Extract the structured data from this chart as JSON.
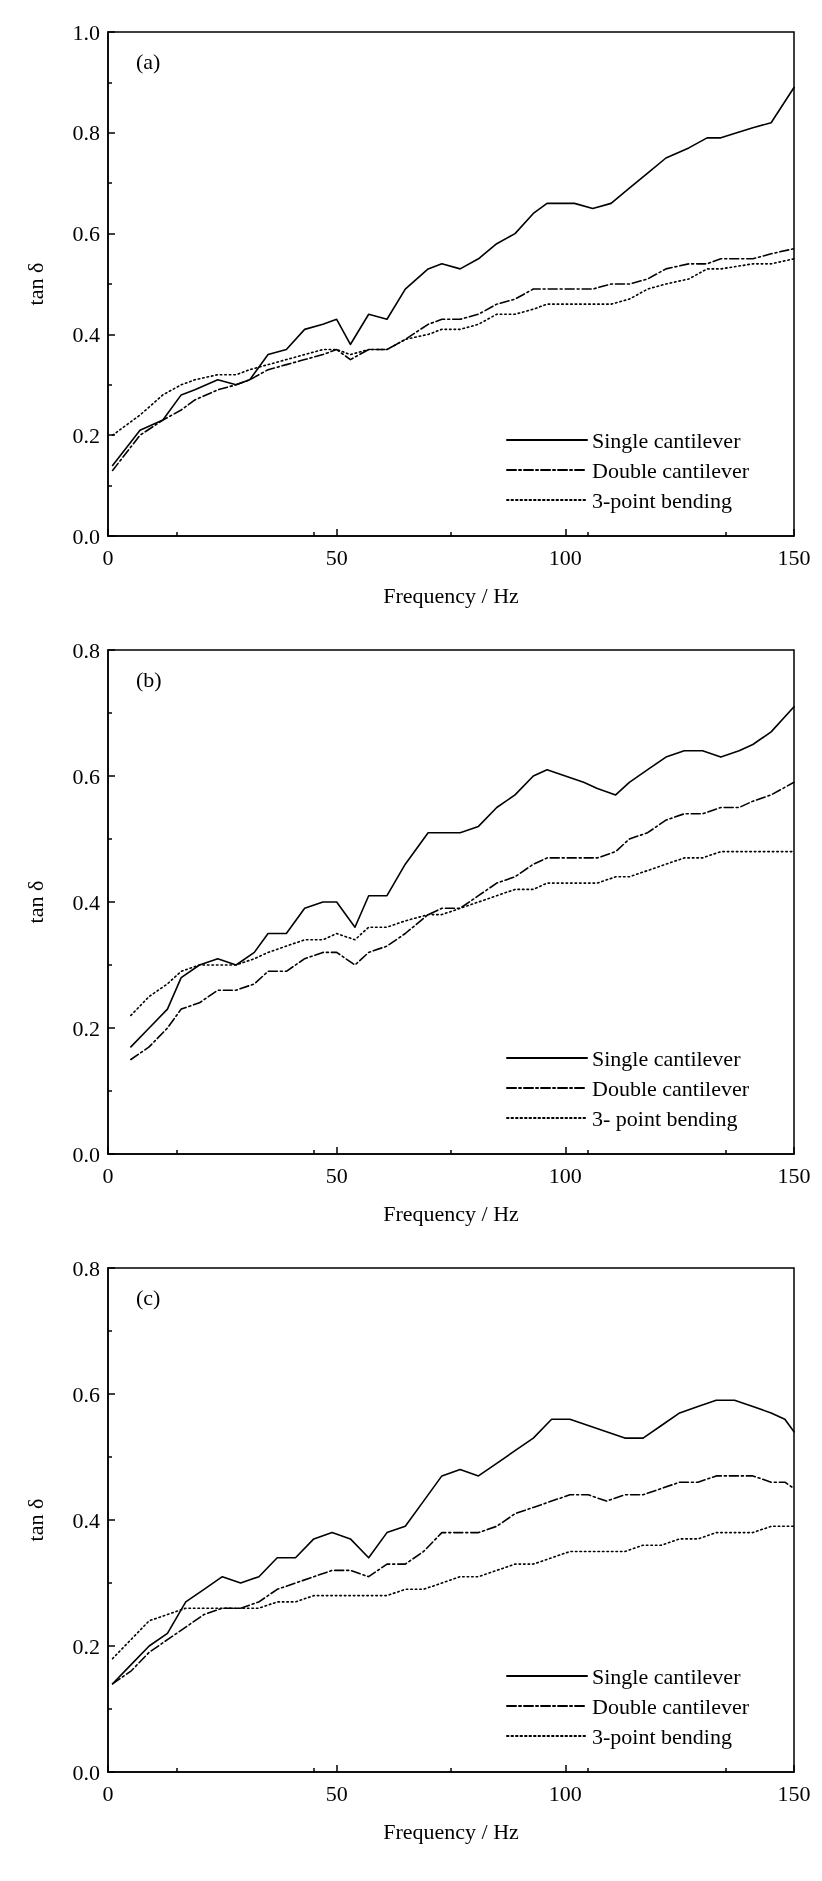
{
  "chart_data": [
    {
      "type": "line",
      "xlabel": "Frequency / Hz",
      "ylabel": "tan δ",
      "annotations": [
        "(a)"
      ],
      "xlim": [
        0,
        150
      ],
      "xticks": [
        0,
        50,
        100,
        150
      ],
      "ylim": [
        0,
        1.0
      ],
      "yticks": [
        {
          "value": 0,
          "label": "0.0"
        },
        {
          "value": 0.2,
          "label": "0.2"
        },
        {
          "value": 0.4,
          "label": "0.4"
        },
        {
          "value": 0.6,
          "label": "0.6"
        },
        {
          "value": 0.8,
          "label": "0.8"
        },
        {
          "value": 1.0,
          "label": "1.0"
        }
      ],
      "grid": false,
      "legend": "bottom right",
      "marker": "none",
      "x": [
        1,
        7,
        12,
        16,
        19,
        24,
        28,
        31,
        35,
        39,
        43,
        47,
        50,
        53,
        57,
        61,
        65,
        70,
        73,
        77,
        81,
        85,
        89,
        93,
        96,
        102,
        106,
        110,
        114,
        118,
        122,
        127,
        131,
        134,
        141,
        145,
        150
      ],
      "series": [
        {
          "name": "Single cantilever",
          "color": "#000000",
          "line_style": "solid",
          "values": [
            0.14,
            0.21,
            0.23,
            0.28,
            0.29,
            0.31,
            0.3,
            0.31,
            0.36,
            0.37,
            0.41,
            0.42,
            0.43,
            0.38,
            0.44,
            0.43,
            0.49,
            0.53,
            0.54,
            0.53,
            0.55,
            0.58,
            0.6,
            0.64,
            0.66,
            0.66,
            0.65,
            0.66,
            0.69,
            0.72,
            0.75,
            0.77,
            0.79,
            0.79,
            0.81,
            0.82,
            0.89
          ]
        },
        {
          "name": "Double cantilever",
          "color": "#000000",
          "line_style": "dashdot",
          "values": [
            0.13,
            0.2,
            0.23,
            0.25,
            0.27,
            0.29,
            0.3,
            0.31,
            0.33,
            0.34,
            0.35,
            0.36,
            0.37,
            0.35,
            0.37,
            0.37,
            0.39,
            0.42,
            0.43,
            0.43,
            0.44,
            0.46,
            0.47,
            0.49,
            0.49,
            0.49,
            0.49,
            0.5,
            0.5,
            0.51,
            0.53,
            0.54,
            0.54,
            0.55,
            0.55,
            0.56,
            0.57
          ]
        },
        {
          "name": "3-point bending",
          "color": "#000000",
          "line_style": "dotted",
          "values": [
            0.2,
            0.24,
            0.28,
            0.3,
            0.31,
            0.32,
            0.32,
            0.33,
            0.34,
            0.35,
            0.36,
            0.37,
            0.37,
            0.36,
            0.37,
            0.37,
            0.39,
            0.4,
            0.41,
            0.41,
            0.42,
            0.44,
            0.44,
            0.45,
            0.46,
            0.46,
            0.46,
            0.46,
            0.47,
            0.49,
            0.5,
            0.51,
            0.53,
            0.53,
            0.54,
            0.54,
            0.55
          ]
        }
      ]
    },
    {
      "type": "line",
      "xlabel": "Frequency / Hz",
      "ylabel": "tan δ",
      "annotations": [
        "(b)"
      ],
      "xlim": [
        0,
        150
      ],
      "xticks": [
        0,
        50,
        100,
        150
      ],
      "ylim": [
        0,
        0.8
      ],
      "yticks": [
        {
          "value": 0,
          "label": "0.0"
        },
        {
          "value": 0.2,
          "label": "0.2"
        },
        {
          "value": 0.4,
          "label": "0.4"
        },
        {
          "value": 0.6,
          "label": "0.6"
        },
        {
          "value": 0.8,
          "label": "0.8"
        }
      ],
      "grid": false,
      "legend": "bottom right",
      "marker": "none",
      "x": [
        5,
        9,
        13,
        16,
        20,
        24,
        28,
        32,
        35,
        39,
        43,
        47,
        50,
        54,
        57,
        61,
        65,
        70,
        73,
        77,
        81,
        85,
        89,
        93,
        96,
        100,
        104,
        107,
        111,
        114,
        118,
        122,
        126,
        130,
        134,
        138,
        141,
        145,
        150
      ],
      "series": [
        {
          "name": "Single cantilever",
          "color": "#000000",
          "line_style": "solid",
          "values": [
            0.17,
            0.2,
            0.23,
            0.28,
            0.3,
            0.31,
            0.3,
            0.32,
            0.35,
            0.35,
            0.39,
            0.4,
            0.4,
            0.36,
            0.41,
            0.41,
            0.46,
            0.51,
            0.51,
            0.51,
            0.52,
            0.55,
            0.57,
            0.6,
            0.61,
            0.6,
            0.59,
            0.58,
            0.57,
            0.59,
            0.61,
            0.63,
            0.64,
            0.64,
            0.63,
            0.64,
            0.65,
            0.67,
            0.71
          ]
        },
        {
          "name": "Double cantilever",
          "color": "#000000",
          "line_style": "dashdot",
          "values": [
            0.15,
            0.17,
            0.2,
            0.23,
            0.24,
            0.26,
            0.26,
            0.27,
            0.29,
            0.29,
            0.31,
            0.32,
            0.32,
            0.3,
            0.32,
            0.33,
            0.35,
            0.38,
            0.39,
            0.39,
            0.41,
            0.43,
            0.44,
            0.46,
            0.47,
            0.47,
            0.47,
            0.47,
            0.48,
            0.5,
            0.51,
            0.53,
            0.54,
            0.54,
            0.55,
            0.55,
            0.56,
            0.57,
            0.59
          ]
        },
        {
          "name": "3- point bending",
          "color": "#000000",
          "line_style": "dotted",
          "values": [
            0.22,
            0.25,
            0.27,
            0.29,
            0.3,
            0.3,
            0.3,
            0.31,
            0.32,
            0.33,
            0.34,
            0.34,
            0.35,
            0.34,
            0.36,
            0.36,
            0.37,
            0.38,
            0.38,
            0.39,
            0.4,
            0.41,
            0.42,
            0.42,
            0.43,
            0.43,
            0.43,
            0.43,
            0.44,
            0.44,
            0.45,
            0.46,
            0.47,
            0.47,
            0.48,
            0.48,
            0.48,
            0.48,
            0.48
          ]
        }
      ]
    },
    {
      "type": "line",
      "xlabel": "Frequency / Hz",
      "ylabel": "tan δ",
      "annotations": [
        "(c)"
      ],
      "xlim": [
        0,
        150
      ],
      "xticks": [
        0,
        50,
        100,
        150
      ],
      "ylim": [
        0,
        0.8
      ],
      "yticks": [
        {
          "value": 0,
          "label": "0.0"
        },
        {
          "value": 0.2,
          "label": "0.2"
        },
        {
          "value": 0.4,
          "label": "0.4"
        },
        {
          "value": 0.6,
          "label": "0.6"
        },
        {
          "value": 0.8,
          "label": "0.8"
        }
      ],
      "grid": false,
      "legend": "bottom right",
      "marker": "none",
      "x": [
        1,
        5,
        9,
        13,
        17,
        21,
        25,
        29,
        33,
        37,
        41,
        45,
        49,
        53,
        57,
        61,
        65,
        69,
        73,
        77,
        81,
        85,
        89,
        93,
        97,
        101,
        105,
        109,
        113,
        117,
        121,
        125,
        129,
        133,
        137,
        141,
        145,
        148,
        150
      ],
      "series": [
        {
          "name": "Single cantilever",
          "color": "#000000",
          "line_style": "solid",
          "values": [
            0.14,
            0.17,
            0.2,
            0.22,
            0.27,
            0.29,
            0.31,
            0.3,
            0.31,
            0.34,
            0.34,
            0.37,
            0.38,
            0.37,
            0.34,
            0.38,
            0.39,
            0.43,
            0.47,
            0.48,
            0.47,
            0.49,
            0.51,
            0.53,
            0.56,
            0.56,
            0.55,
            0.54,
            0.53,
            0.53,
            0.55,
            0.57,
            0.58,
            0.59,
            0.59,
            0.58,
            0.57,
            0.56,
            0.54
          ]
        },
        {
          "name": "Double cantilever",
          "color": "#000000",
          "line_style": "dashdot",
          "values": [
            0.14,
            0.16,
            0.19,
            0.21,
            0.23,
            0.25,
            0.26,
            0.26,
            0.27,
            0.29,
            0.3,
            0.31,
            0.32,
            0.32,
            0.31,
            0.33,
            0.33,
            0.35,
            0.38,
            0.38,
            0.38,
            0.39,
            0.41,
            0.42,
            0.43,
            0.44,
            0.44,
            0.43,
            0.44,
            0.44,
            0.45,
            0.46,
            0.46,
            0.47,
            0.47,
            0.47,
            0.46,
            0.46,
            0.45
          ]
        },
        {
          "name": "3-point bending",
          "color": "#000000",
          "line_style": "dotted",
          "values": [
            0.18,
            0.21,
            0.24,
            0.25,
            0.26,
            0.26,
            0.26,
            0.26,
            0.26,
            0.27,
            0.27,
            0.28,
            0.28,
            0.28,
            0.28,
            0.28,
            0.29,
            0.29,
            0.3,
            0.31,
            0.31,
            0.32,
            0.33,
            0.33,
            0.34,
            0.35,
            0.35,
            0.35,
            0.35,
            0.36,
            0.36,
            0.37,
            0.37,
            0.38,
            0.38,
            0.38,
            0.39,
            0.39,
            0.39
          ]
        }
      ]
    }
  ]
}
